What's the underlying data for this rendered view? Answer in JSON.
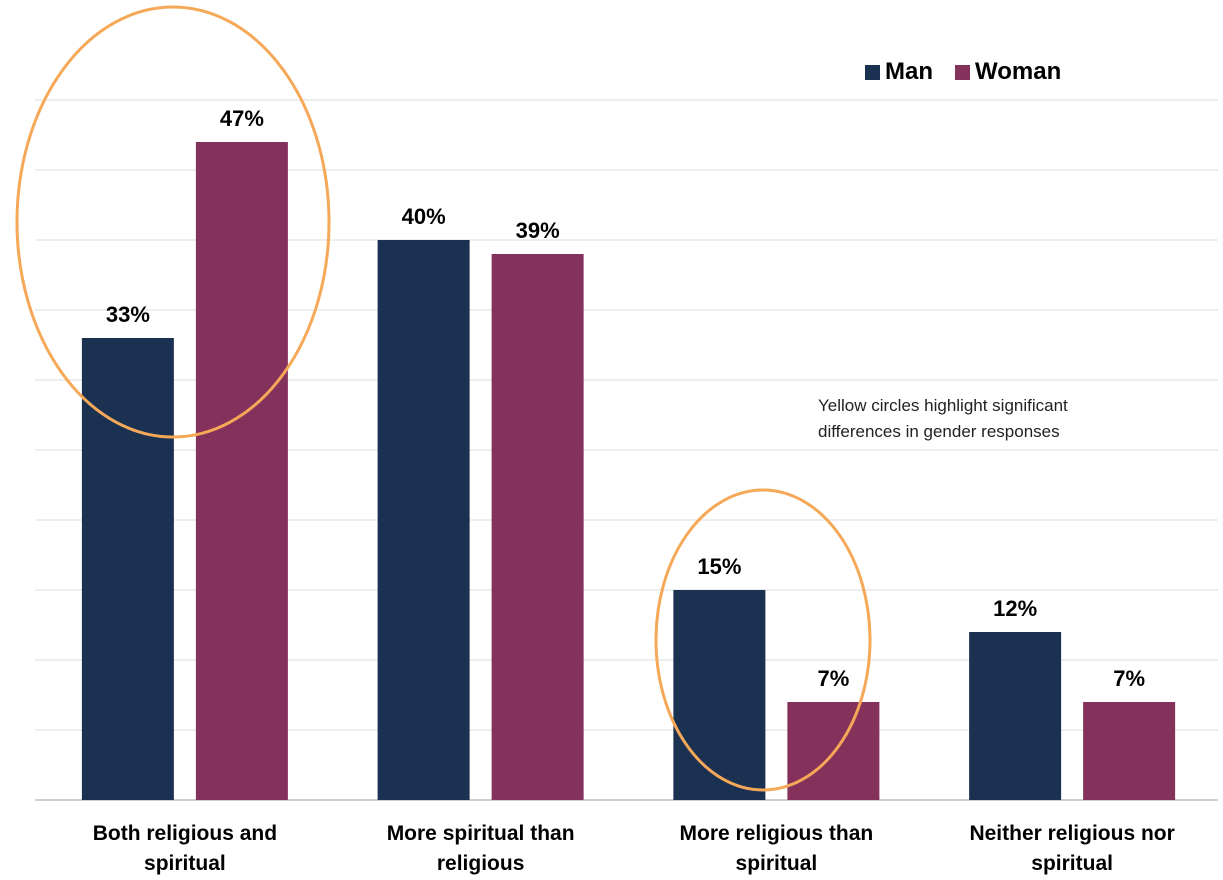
{
  "chart_data": {
    "type": "bar",
    "categories": [
      [
        "Both religious and",
        "spiritual"
      ],
      [
        "More spiritual than",
        "religious"
      ],
      [
        "More religious than",
        "spiritual"
      ],
      [
        "Neither religious nor",
        "spiritual"
      ]
    ],
    "series": [
      {
        "name": "Man",
        "color": "#1b3152",
        "values": [
          33,
          40,
          15,
          12
        ],
        "labels": [
          "33%",
          "40%",
          "15%",
          "12%"
        ]
      },
      {
        "name": "Woman",
        "color": "#84315b",
        "values": [
          47,
          39,
          7,
          7
        ],
        "labels": [
          "47%",
          "39%",
          "7%",
          "7%"
        ]
      }
    ],
    "ylim": [
      0,
      50
    ],
    "grid": true,
    "legend": "top-right",
    "highlight_color": "#f5a858",
    "highlighted_categories": [
      0,
      2
    ],
    "annotation": [
      "Yellow circles highlight significant",
      "differences in gender responses"
    ]
  }
}
